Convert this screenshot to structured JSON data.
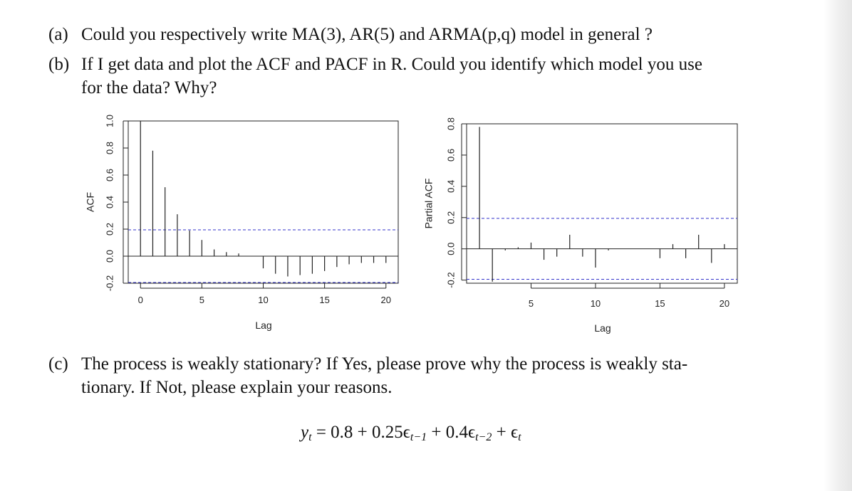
{
  "questions": [
    {
      "label": "(a)",
      "line1": "Could you respectively write MA(3), AR(5) and ARMA(p,q) model in general ?",
      "line2": ""
    },
    {
      "label": "(b)",
      "line1": "If I get data and plot the ACF and PACF in R. Could you identify which model you use",
      "line2": "for the data? Why?"
    },
    {
      "label": "(c)",
      "line1": "The process is weakly stationary? If Yes, please prove why the process is weakly sta-",
      "line2": "tionary. If Not, please explain your reasons."
    }
  ],
  "equation": {
    "lhs": "y",
    "lhs_sub": "t",
    "eq": " = 0.8 + 0.25ϵ",
    "sub1": "t−1",
    "mid": " + 0.4ϵ",
    "sub2": "t−2",
    "tail": " + ϵ",
    "sub3": "t"
  },
  "chart_data": [
    {
      "type": "bar",
      "name": "acf",
      "title": "",
      "xlabel": "Lag",
      "ylabel": "ACF",
      "xlim": [
        -1,
        21
      ],
      "ylim": [
        -0.2,
        1.0
      ],
      "xticks": [
        0,
        5,
        10,
        15,
        20
      ],
      "yticks": [
        -0.2,
        0.0,
        0.2,
        0.4,
        0.6,
        0.8,
        1.0
      ],
      "ytick_labels": [
        "-0.2",
        "0.0",
        "0.2",
        "0.4",
        "0.6",
        "0.8",
        "1.0"
      ],
      "x": [
        0,
        1,
        2,
        3,
        4,
        5,
        6,
        7,
        8,
        9,
        10,
        11,
        12,
        13,
        14,
        15,
        16,
        17,
        18,
        19,
        20
      ],
      "values": [
        1.0,
        0.78,
        0.51,
        0.31,
        0.19,
        0.12,
        0.05,
        0.03,
        0.02,
        0.0,
        -0.09,
        -0.13,
        -0.15,
        -0.14,
        -0.13,
        -0.11,
        -0.08,
        -0.06,
        -0.05,
        -0.05,
        -0.05
      ],
      "conf_band": 0.195,
      "conf_color": "#3333cc"
    },
    {
      "type": "bar",
      "name": "pacf",
      "title": "",
      "xlabel": "Lag",
      "ylabel": "Partial ACF",
      "xlim": [
        0,
        21
      ],
      "ylim": [
        -0.22,
        0.8
      ],
      "xticks": [
        5,
        10,
        15,
        20
      ],
      "yticks": [
        -0.2,
        0.0,
        0.2,
        0.4,
        0.6,
        0.8
      ],
      "ytick_labels": [
        "-0.2",
        "0.0",
        "0.2",
        "0.4",
        "0.6",
        "0.8"
      ],
      "x": [
        1,
        2,
        3,
        4,
        5,
        6,
        7,
        8,
        9,
        10,
        11,
        12,
        13,
        14,
        15,
        16,
        17,
        18,
        19,
        20
      ],
      "values": [
        0.78,
        -0.21,
        -0.01,
        0.01,
        0.04,
        -0.07,
        -0.05,
        0.09,
        -0.05,
        -0.12,
        -0.01,
        0.0,
        0.0,
        0.0,
        -0.06,
        0.03,
        -0.06,
        0.09,
        -0.09,
        0.03
      ],
      "conf_band": 0.195,
      "conf_color": "#3333cc"
    }
  ]
}
